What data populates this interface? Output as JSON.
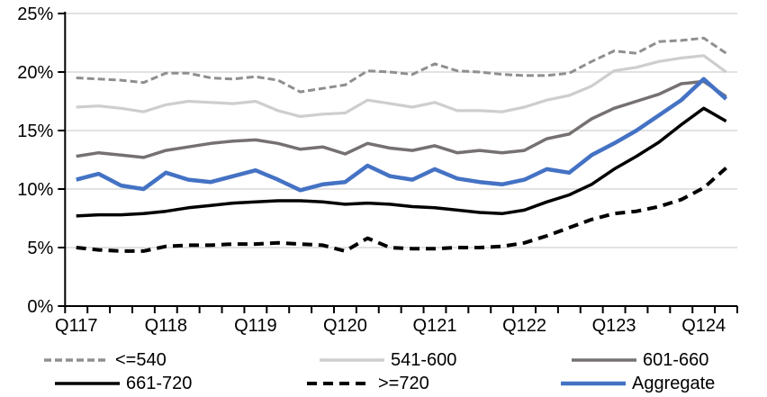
{
  "chart_data": {
    "type": "line",
    "title": "",
    "xlabel": "",
    "ylabel": "",
    "ylim": [
      0,
      25
    ],
    "grid": "horizontal-only",
    "gridline_color": "#D9D9D9",
    "axis_color": "#000000",
    "legend_position": "bottom",
    "n_points": 30,
    "x_axis_note": "quarterly categories from Q1 2017 to Q2 2024, tick mark at every quarter, label at every 4th",
    "y_ticks": [
      {
        "value": 0,
        "label": "0%"
      },
      {
        "value": 5,
        "label": "5%"
      },
      {
        "value": 10,
        "label": "10%"
      },
      {
        "value": 15,
        "label": "15%"
      },
      {
        "value": 20,
        "label": "20%"
      },
      {
        "value": 25,
        "label": "25%"
      }
    ],
    "x_tick_labels": [
      {
        "index": 0,
        "label": "Q117"
      },
      {
        "index": 4,
        "label": "Q118"
      },
      {
        "index": 8,
        "label": "Q119"
      },
      {
        "index": 12,
        "label": "Q120"
      },
      {
        "index": 16,
        "label": "Q121"
      },
      {
        "index": 20,
        "label": "Q122"
      },
      {
        "index": 24,
        "label": "Q123"
      },
      {
        "index": 28,
        "label": "Q124"
      }
    ],
    "series": [
      {
        "name": "<=540",
        "color": "#8F8F8F",
        "dashed": true,
        "dash": "8 4",
        "width": 3,
        "values": [
          19.5,
          19.4,
          19.3,
          19.1,
          19.9,
          19.9,
          19.5,
          19.4,
          19.6,
          19.3,
          18.3,
          18.6,
          18.9,
          20.1,
          20.0,
          19.8,
          20.7,
          20.1,
          20.0,
          19.8,
          19.7,
          19.7,
          19.9,
          20.9,
          21.8,
          21.6,
          22.6,
          22.7,
          22.9,
          21.6
        ]
      },
      {
        "name": "541-600",
        "color": "#CFCDCD",
        "dashed": false,
        "dash": "",
        "width": 3.2,
        "values": [
          17.0,
          17.1,
          16.9,
          16.6,
          17.2,
          17.5,
          17.4,
          17.3,
          17.5,
          16.7,
          16.2,
          16.4,
          16.5,
          17.6,
          17.3,
          17.0,
          17.4,
          16.7,
          16.7,
          16.6,
          17.0,
          17.6,
          18.0,
          18.8,
          20.1,
          20.4,
          20.9,
          21.2,
          21.4,
          20.0
        ]
      },
      {
        "name": "601-660",
        "color": "#767171",
        "dashed": false,
        "dash": "",
        "width": 3.5,
        "values": [
          12.8,
          13.1,
          12.9,
          12.7,
          13.3,
          13.6,
          13.9,
          14.1,
          14.2,
          13.9,
          13.4,
          13.6,
          13.0,
          13.9,
          13.5,
          13.3,
          13.7,
          13.1,
          13.3,
          13.1,
          13.3,
          14.3,
          14.7,
          16.0,
          16.9,
          17.5,
          18.1,
          19.0,
          19.2,
          17.9
        ]
      },
      {
        "name": "661-720",
        "color": "#000000",
        "dashed": false,
        "dash": "",
        "width": 3.5,
        "values": [
          7.7,
          7.8,
          7.8,
          7.9,
          8.1,
          8.4,
          8.6,
          8.8,
          8.9,
          9.0,
          9.0,
          8.9,
          8.7,
          8.8,
          8.7,
          8.5,
          8.4,
          8.2,
          8.0,
          7.9,
          8.2,
          8.9,
          9.5,
          10.4,
          11.7,
          12.8,
          14.0,
          15.5,
          16.9,
          15.8
        ]
      },
      {
        "name": ">=720",
        "color": "#000000",
        "dashed": true,
        "dash": "11 7",
        "width": 4,
        "values": [
          5.0,
          4.8,
          4.7,
          4.7,
          5.1,
          5.2,
          5.2,
          5.3,
          5.3,
          5.4,
          5.3,
          5.2,
          4.7,
          5.8,
          5.0,
          4.9,
          4.9,
          5.0,
          5.0,
          5.1,
          5.4,
          6.0,
          6.7,
          7.4,
          7.9,
          8.1,
          8.5,
          9.1,
          10.1,
          11.8
        ]
      },
      {
        "name": "Aggregate",
        "color": "#4472C4",
        "dashed": false,
        "dash": "",
        "width": 4.5,
        "values": [
          10.8,
          11.3,
          10.3,
          10.0,
          11.4,
          10.8,
          10.6,
          11.1,
          11.6,
          10.8,
          9.9,
          10.4,
          10.6,
          12.0,
          11.1,
          10.8,
          11.7,
          10.9,
          10.6,
          10.4,
          10.8,
          11.7,
          11.4,
          12.9,
          13.9,
          15.0,
          16.3,
          17.6,
          19.4,
          17.7
        ]
      }
    ]
  }
}
